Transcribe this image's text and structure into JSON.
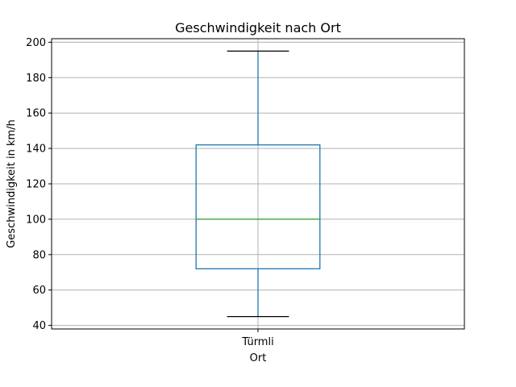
{
  "chart_data": {
    "type": "box",
    "title": "Geschwindigkeit nach Ort",
    "xlabel": "Ort",
    "ylabel": "Geschwindigkeit in km/h",
    "ylim": [
      38,
      202
    ],
    "yticks": [
      40,
      60,
      80,
      100,
      120,
      140,
      160,
      180,
      200
    ],
    "grid": true,
    "categories": [
      "Türmli"
    ],
    "boxes": [
      {
        "category": "Türmli",
        "whisker_low": 45,
        "q1": 72,
        "median": 100,
        "q3": 142,
        "whisker_high": 195
      }
    ],
    "colors": {
      "box": "#1f77b4",
      "median": "#2ca02c",
      "caps": "#000000",
      "grid": "#b0b0b0"
    }
  }
}
